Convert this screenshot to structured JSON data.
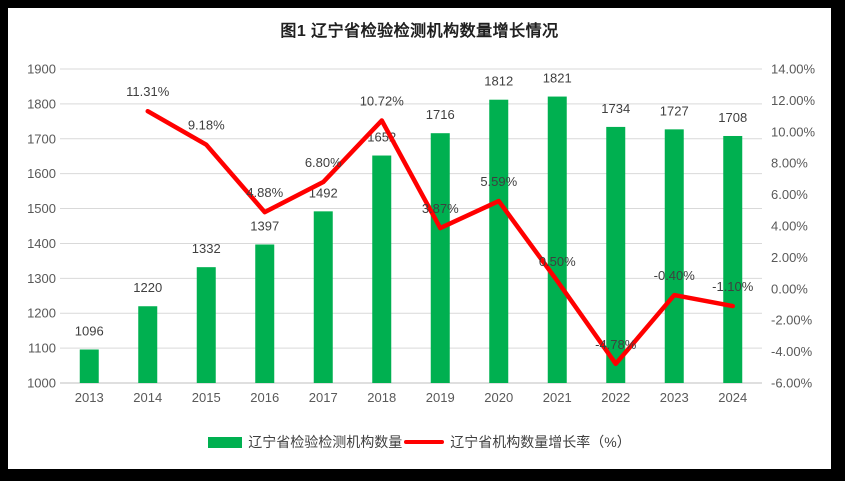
{
  "title": "图1 辽宁省检验检测机构数量增长情况",
  "colors": {
    "frame": "#000000",
    "chart_background": "#ffffff",
    "gridline": "#d9d9d9",
    "axis_line": "#bfbfbf",
    "bar": "#00b050",
    "line": "#ff0000",
    "tick_text": "#595959",
    "label_text": "#3f3f3f"
  },
  "chart_data": {
    "type": "bar",
    "subtype": "bar-line-combo",
    "title": "图1 辽宁省检验检测机构数量增长情况",
    "categories": [
      "2013",
      "2014",
      "2015",
      "2016",
      "2017",
      "2018",
      "2019",
      "2020",
      "2021",
      "2022",
      "2023",
      "2024"
    ],
    "series": [
      {
        "name": "辽宁省检验检测机构数量",
        "type": "bar",
        "axis": "left",
        "color": "#00b050",
        "values": [
          1096,
          1220,
          1332,
          1397,
          1492,
          1652,
          1716,
          1812,
          1821,
          1734,
          1727,
          1708
        ],
        "data_labels": [
          "1096",
          "1220",
          "1332",
          "1397",
          "1492",
          "1652",
          "1716",
          "1812",
          "1821",
          "1734",
          "1727",
          "1708"
        ]
      },
      {
        "name": "辽宁省机构数量增长率（%）",
        "type": "line",
        "axis": "right",
        "color": "#ff0000",
        "values": [
          null,
          11.31,
          9.18,
          4.88,
          6.8,
          10.72,
          3.87,
          5.59,
          0.5,
          -4.78,
          -0.4,
          -1.1
        ],
        "data_labels": [
          null,
          "11.31%",
          "9.18%",
          "4.88%",
          "6.80%",
          "10.72%",
          "3.87%",
          "5.59%",
          "0.50%",
          "-4.78%",
          "-0.40%",
          "-1.10%"
        ]
      }
    ],
    "left_axis": {
      "min": 1000,
      "max": 1900,
      "step": 100,
      "ticks": [
        "1900",
        "1800",
        "1700",
        "1600",
        "1500",
        "1400",
        "1300",
        "1200",
        "1100",
        "1000"
      ]
    },
    "right_axis": {
      "min": -6,
      "max": 14,
      "step": 2,
      "ticks": [
        "14.00%",
        "12.00%",
        "10.00%",
        "8.00%",
        "6.00%",
        "4.00%",
        "2.00%",
        "0.00%",
        "-2.00%",
        "-4.00%",
        "-6.00%"
      ]
    },
    "grid": true,
    "legend_position": "bottom"
  },
  "legend": {
    "items": [
      {
        "label": "辽宁省检验检测机构数量",
        "swatch": "bar",
        "color": "#00b050"
      },
      {
        "label": "辽宁省机构数量增长率（%）",
        "swatch": "line",
        "color": "#ff0000"
      }
    ]
  }
}
